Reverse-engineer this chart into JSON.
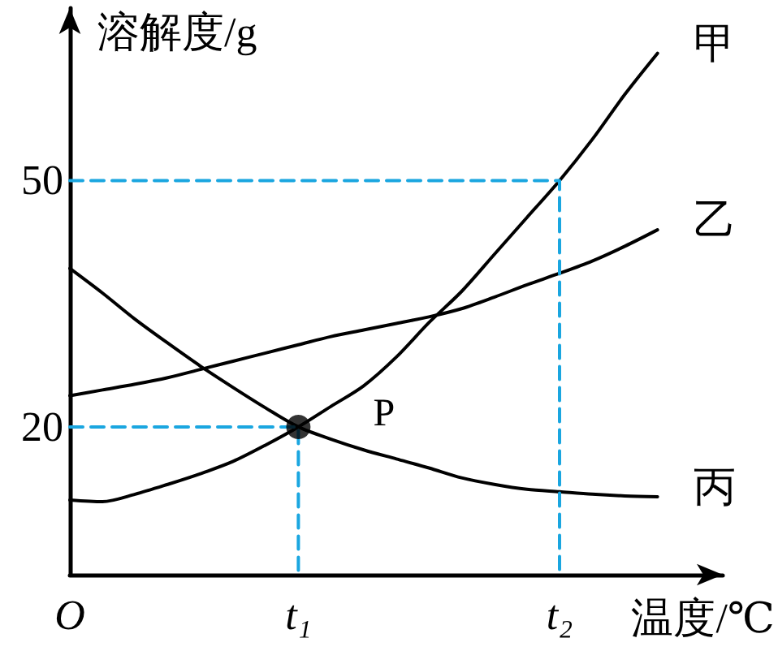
{
  "chart_data": {
    "type": "line",
    "xlabel": "温度/℃",
    "ylabel": "溶解度/g",
    "categories": [
      "O",
      null,
      null,
      null,
      null,
      null,
      null,
      "t₁",
      null,
      null,
      null,
      null,
      null,
      null,
      null,
      "t₂",
      null,
      null,
      null,
      null,
      null
    ],
    "ylim": [
      2,
      71
    ],
    "yticks": [
      20,
      50
    ],
    "series": [
      {
        "name": "甲",
        "color": "#000000",
        "values": [
          11.1,
          10.9,
          11.8,
          13.0,
          14.3,
          15.8,
          17.8,
          20,
          22.5,
          25.0,
          28.5,
          32.7,
          36.5,
          41.0,
          45.5,
          50,
          55.0,
          60.5,
          65.5,
          null,
          null
        ]
      },
      {
        "name": "乙",
        "color": "#000000",
        "values": [
          23.8,
          24.5,
          25.2,
          26.0,
          27.0,
          28.0,
          29.0,
          30.0,
          31.0,
          31.8,
          32.6,
          33.4,
          34.4,
          35.8,
          37.3,
          38.7,
          40.2,
          42.0,
          44.0,
          null,
          null
        ]
      },
      {
        "name": "丙",
        "color": "#000000",
        "values": [
          39.3,
          36.3,
          33.1,
          30.2,
          27.4,
          24.8,
          22.3,
          20,
          18.5,
          17.2,
          16.1,
          15.0,
          13.8,
          13.0,
          12.4,
          12.1,
          11.8,
          11.6,
          11.5,
          null,
          null
        ]
      },
      {
        "color": "#1aa6e0",
        "line_style": "dashed",
        "x": [
          "O",
          "t₁",
          "t₁"
        ],
        "values": [
          20,
          20,
          2
        ]
      },
      {
        "color": "#1aa6e0",
        "line_style": "dashed",
        "x": [
          "O",
          "t₂",
          "t₂"
        ],
        "values": [
          50,
          50,
          2
        ]
      },
      {
        "type": "scatter",
        "color": "#000000",
        "marker": "circle",
        "x": [
          "t₁"
        ],
        "values": [
          20
        ]
      }
    ],
    "annotations": [
      {
        "text": "P",
        "x": "t₁",
        "y": 20
      }
    ],
    "marker": "none",
    "grid": false,
    "legend": false
  }
}
